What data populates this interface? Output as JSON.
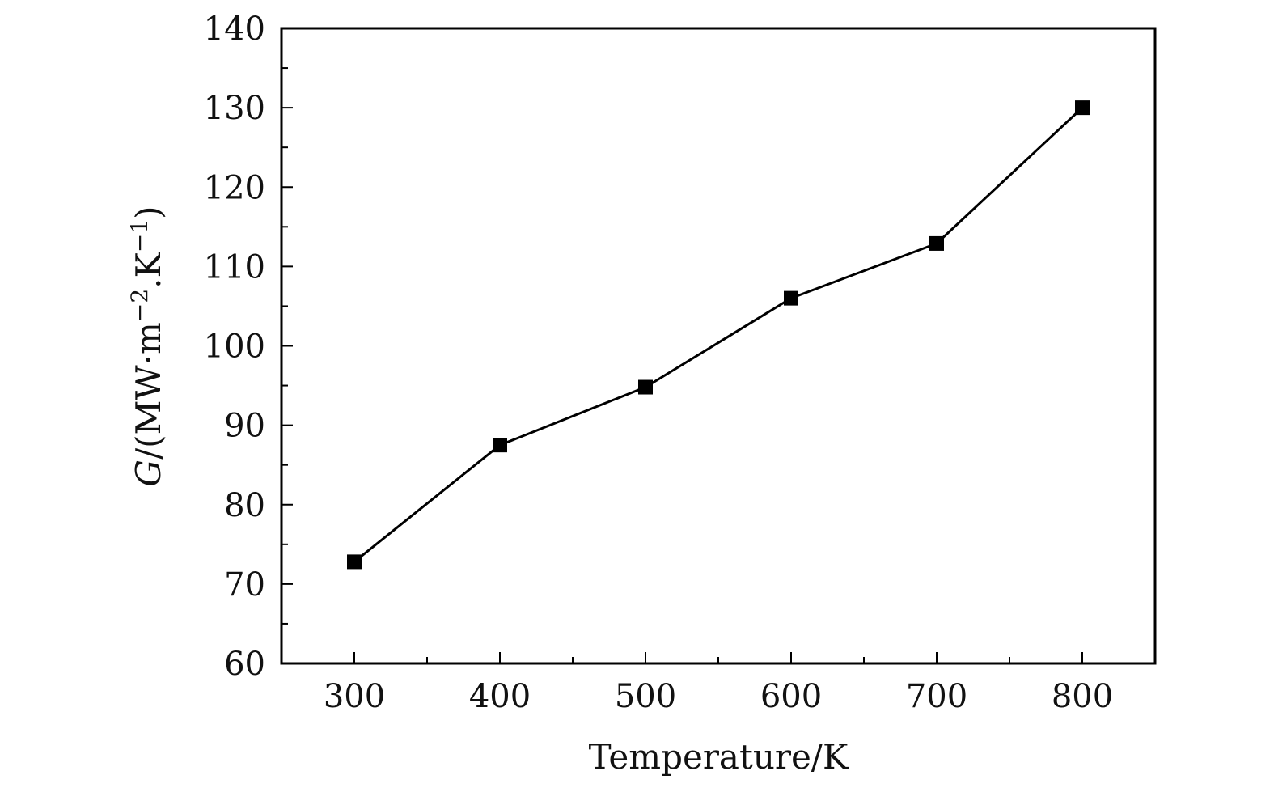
{
  "chart_data": {
    "type": "line",
    "title": "",
    "xlabel": "Temperature/K",
    "ylabel": {
      "symbol": "G",
      "unit_open": "/(MW·m",
      "exp1": "−2",
      "unit_mid": ".K",
      "exp2": "−1",
      "unit_close": ")"
    },
    "xlim": [
      250,
      850
    ],
    "ylim": [
      60,
      140
    ],
    "xticks": [
      300,
      400,
      500,
      600,
      700,
      800
    ],
    "yticks": [
      60,
      70,
      80,
      90,
      100,
      110,
      120,
      130,
      140
    ],
    "x_minor_step": 50,
    "y_minor_step": 5,
    "grid": false,
    "legend": "none",
    "series": [
      {
        "marker": "square",
        "color": "#000000",
        "x": [
          300,
          400,
          500,
          600,
          700,
          800
        ],
        "y": [
          72.8,
          87.5,
          94.8,
          106.0,
          112.9,
          130.0
        ]
      }
    ]
  }
}
